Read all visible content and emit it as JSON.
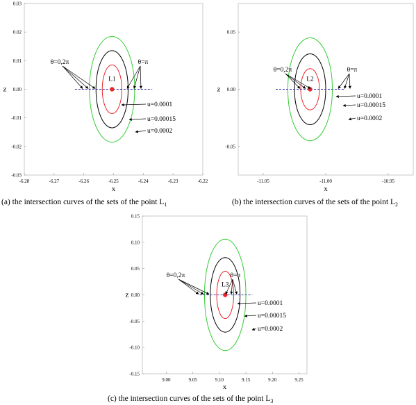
{
  "chart_data": [
    {
      "type": "line",
      "caption": "(a) the intersection curves of the sets of the point L",
      "caption_sub": "1",
      "xlabel": "x",
      "ylabel": "z",
      "xlim": [
        -6.28,
        -6.22
      ],
      "ylim": [
        -0.03,
        0.03
      ],
      "xticks": [
        "-6.28",
        "-6.27",
        "-6.26",
        "-6.25",
        "-6.24",
        "-6.23",
        "-6.22"
      ],
      "xtick_values": [
        -6.28,
        -6.27,
        -6.26,
        -6.25,
        -6.24,
        -6.23,
        -6.22
      ],
      "yticks": [
        "-0.03",
        "-0.02",
        "-0.01",
        "0.00",
        "0.01",
        "0.02",
        "0.03"
      ],
      "ytick_values": [
        -0.03,
        -0.02,
        -0.01,
        0.0,
        0.01,
        0.02,
        0.03
      ],
      "point": {
        "label": "L1",
        "x": -6.2505,
        "z": 0.0
      },
      "dashed_line": {
        "x_from": -6.263,
        "x_to": -6.237,
        "z": 0.0
      },
      "series": [
        {
          "name": "u=0.0001",
          "color": "#e8262c",
          "semi_axis_x": 0.0033,
          "semi_axis_z": 0.0085
        },
        {
          "name": "u=0.00015",
          "color": "#000000",
          "semi_axis_x": 0.0054,
          "semi_axis_z": 0.0135
        },
        {
          "name": "u=0.0002",
          "color": "#33cc33",
          "semi_axis_x": 0.0076,
          "semi_axis_z": 0.0185
        }
      ],
      "theta_left": "θ=0,2π",
      "theta_right": "θ=π"
    },
    {
      "type": "line",
      "caption": "(b) the intersection curves of the sets of the point L",
      "caption_sub": "2",
      "xlabel": "x",
      "ylabel": "z",
      "xlim": [
        -11.07,
        -10.93
      ],
      "ylim": [
        -0.075,
        0.075
      ],
      "xticks": [
        "-11.05",
        "-11.00",
        "-10.95"
      ],
      "xtick_values": [
        -11.05,
        -11.0,
        -10.95
      ],
      "yticks": [
        "-0.05",
        "0.00",
        "0.05"
      ],
      "ytick_values": [
        -0.05,
        0.0,
        0.05
      ],
      "point": {
        "label": "L2",
        "x": -11.0125,
        "z": 0.0
      },
      "dashed_line": {
        "x_from": -11.04,
        "x_to": -10.985,
        "z": 0.0
      },
      "series": [
        {
          "name": "u=0.0001",
          "color": "#e8262c",
          "semi_axis_x": 0.0075,
          "semi_axis_z": 0.018
        },
        {
          "name": "u=0.00015",
          "color": "#000000",
          "semi_axis_x": 0.0125,
          "semi_axis_z": 0.031
        },
        {
          "name": "u=0.0002",
          "color": "#33cc33",
          "semi_axis_x": 0.0178,
          "semi_axis_z": 0.045
        }
      ],
      "theta_left": "θ=0,2π",
      "theta_right": "θ=π"
    },
    {
      "type": "line",
      "caption": "(c) the intersection curves of the sets of the point L",
      "caption_sub": "3",
      "xlabel": "x",
      "ylabel": "z",
      "xlim": [
        8.955,
        9.265
      ],
      "ylim": [
        -0.15,
        0.15
      ],
      "xticks": [
        "9.00",
        "9.05",
        "9.10",
        "9.15",
        "9.20",
        "9.25"
      ],
      "xtick_values": [
        9.0,
        9.05,
        9.1,
        9.15,
        9.2,
        9.25
      ],
      "yticks": [
        "-0.15",
        "-0.10",
        "-0.05",
        "0.00",
        "0.05",
        "0.10",
        "0.15"
      ],
      "ytick_values": [
        -0.15,
        -0.1,
        -0.05,
        0.0,
        0.05,
        0.1,
        0.15
      ],
      "point": {
        "label": "L3",
        "x": 9.111,
        "z": 0.0
      },
      "dashed_line": {
        "x_from": 9.063,
        "x_to": 9.162,
        "z": 0.0
      },
      "series": [
        {
          "name": "u=0.0001",
          "color": "#e8262c",
          "semi_axis_x": 0.016,
          "semi_axis_z": 0.045
        },
        {
          "name": "u=0.00015",
          "color": "#000000",
          "semi_axis_x": 0.028,
          "semi_axis_z": 0.071
        },
        {
          "name": "u=0.0002",
          "color": "#33cc33",
          "semi_axis_x": 0.039,
          "semi_axis_z": 0.106
        }
      ],
      "theta_left": "θ=0,2π",
      "theta_right": "θ=π"
    }
  ]
}
